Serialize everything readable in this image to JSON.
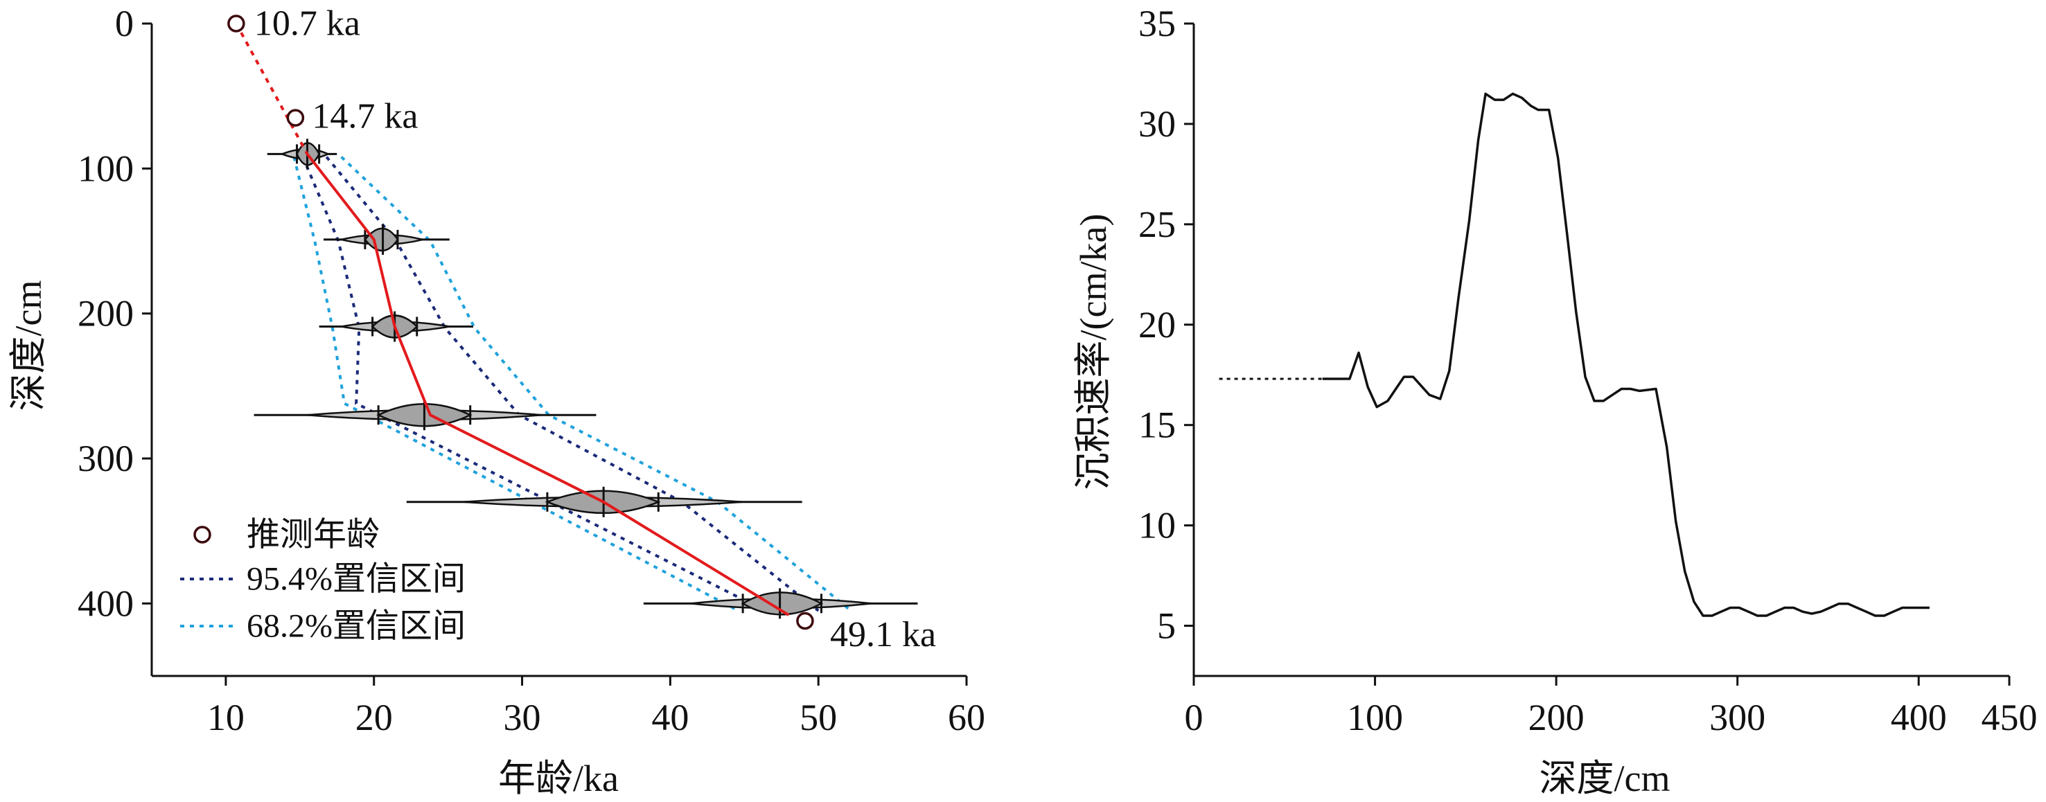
{
  "chart_data": [
    {
      "type": "line",
      "xlabel": "年龄/ka",
      "ylabel": "深度/cm",
      "xlim": [
        5,
        60
      ],
      "ylim": [
        0,
        450
      ],
      "y_inverted": true,
      "xticks": [
        10,
        20,
        30,
        40,
        50,
        60
      ],
      "yticks": [
        0,
        100,
        200,
        300,
        400
      ],
      "grid": false,
      "inferred_ages": [
        {
          "age": 10.7,
          "depth": 0,
          "label": "10.7 ka"
        },
        {
          "age": 14.7,
          "depth": 65,
          "label": "14.7 ka"
        },
        {
          "age": 49.1,
          "depth": 412,
          "label": "49.1 ka"
        }
      ],
      "calibrated_dates": [
        {
          "depth": 90,
          "median": 15.5,
          "range": [
            12.8,
            17.5
          ],
          "envelope": [
            13.8,
            16.9
          ],
          "core": [
            14.8,
            16.3
          ]
        },
        {
          "depth": 149,
          "median": 20.6,
          "range": [
            16.6,
            25.1
          ],
          "envelope": [
            17.8,
            23.3
          ],
          "core": [
            19.4,
            21.6
          ]
        },
        {
          "depth": 209,
          "median": 21.4,
          "range": [
            16.3,
            26.7
          ],
          "envelope": [
            17.8,
            25.1
          ],
          "core": [
            19.9,
            22.9
          ]
        },
        {
          "depth": 270,
          "median": 23.4,
          "range": [
            11.9,
            35.0
          ],
          "envelope": [
            15.5,
            31.3
          ],
          "core": [
            20.3,
            26.5
          ]
        },
        {
          "depth": 330,
          "median": 35.5,
          "range": [
            22.2,
            48.9
          ],
          "envelope": [
            26.0,
            44.9
          ],
          "core": [
            31.7,
            39.2
          ]
        },
        {
          "depth": 400,
          "median": 47.4,
          "range": [
            38.2,
            56.7
          ],
          "envelope": [
            41.4,
            53.6
          ],
          "core": [
            44.9,
            50.2
          ]
        }
      ],
      "age_model": {
        "age": [
          15.5,
          20.0,
          21.4,
          23.8,
          35.5,
          48.0
        ],
        "depth": [
          90,
          149,
          209,
          270,
          330,
          408
        ]
      },
      "extrapolation": {
        "age": [
          10.7,
          15.5
        ],
        "depth": [
          0,
          90
        ]
      },
      "ci_95_4": {
        "younger_bound": {
          "age": [
            15.2,
            17.6,
            19.0,
            18.8,
            46.4
          ],
          "depth": [
            92,
            150,
            210,
            262,
            405
          ]
        },
        "older_bound": {
          "age": [
            16.8,
            21.5,
            24.8,
            29.8,
            40.8,
            50.0
          ],
          "depth": [
            92,
            150,
            210,
            270,
            330,
            405
          ]
        }
      },
      "ci_68_2": {
        "younger_bound": {
          "age": [
            14.6,
            16.0,
            17.2,
            18.0,
            44.6
          ],
          "depth": [
            92,
            150,
            210,
            262,
            405
          ]
        },
        "older_bound": {
          "age": [
            17.8,
            23.8,
            26.8,
            31.8,
            43.2,
            52.2
          ],
          "depth": [
            92,
            150,
            210,
            270,
            330,
            405
          ]
        }
      },
      "legend": [
        {
          "label": "推测年龄",
          "marker": "circle"
        },
        {
          "label": "95.4%置信区间",
          "style": "dotted"
        },
        {
          "label": "68.2%置信区间",
          "style": "dotted"
        }
      ],
      "legend_position": "bottom-left",
      "colors": {
        "model": "#e31a1c",
        "ci_95_4": "#1b2a78",
        "ci_68_2": "#1fa2dc",
        "core_fill": "#a3a3a3",
        "envelope_fill": "#c4c4c4",
        "point_stroke": "#3d0b0e"
      }
    },
    {
      "type": "line",
      "xlabel": "深度/cm",
      "ylabel": "沉积速率/(cm/ka)",
      "xlim": [
        0,
        450
      ],
      "ylim": [
        2.5,
        35
      ],
      "xticks": [
        0,
        100,
        200,
        300,
        400,
        450
      ],
      "yticks": [
        5,
        10,
        15,
        20,
        25,
        30,
        35
      ],
      "grid": false,
      "extrapolated": {
        "x": [
          14,
          71
        ],
        "y": [
          17.3,
          17.3
        ]
      },
      "series": [
        {
          "x": [
            71,
            86,
            91,
            96,
            101,
            107,
            116,
            121,
            130,
            136,
            141,
            146,
            152,
            157,
            161,
            166,
            171,
            176,
            181,
            186,
            190,
            196,
            201,
            206,
            211,
            216,
            221,
            226,
            231,
            236,
            241,
            246,
            255,
            261,
            266,
            271,
            276,
            281,
            286,
            291,
            296,
            301,
            306,
            311,
            316,
            321,
            326,
            331,
            336,
            341,
            346,
            351,
            356,
            361,
            366,
            371,
            376,
            381,
            386,
            391,
            396,
            406
          ],
          "y": [
            17.3,
            17.3,
            18.6,
            16.9,
            15.9,
            16.2,
            17.4,
            17.4,
            16.5,
            16.3,
            17.7,
            21.3,
            25.2,
            29.2,
            31.5,
            31.2,
            31.2,
            31.5,
            31.3,
            30.9,
            30.7,
            30.7,
            28.3,
            24.5,
            20.6,
            17.4,
            16.2,
            16.2,
            16.5,
            16.8,
            16.8,
            16.7,
            16.8,
            13.9,
            10.2,
            7.7,
            6.2,
            5.5,
            5.5,
            5.7,
            5.9,
            5.9,
            5.7,
            5.5,
            5.5,
            5.7,
            5.9,
            5.9,
            5.7,
            5.6,
            5.7,
            5.9,
            6.1,
            6.1,
            5.9,
            5.7,
            5.5,
            5.5,
            5.7,
            5.9,
            5.9,
            5.9
          ]
        }
      ],
      "colors": {
        "line": "#111111"
      }
    }
  ]
}
